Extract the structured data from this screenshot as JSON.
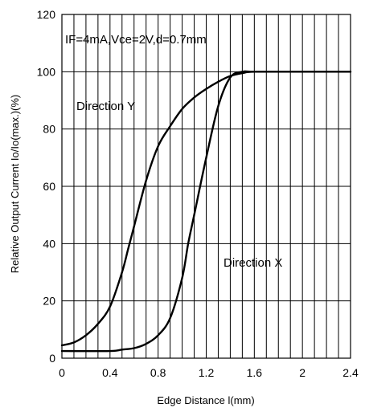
{
  "chart_data": {
    "type": "line",
    "xlabel": "Edge Distance l(mm)",
    "ylabel": "Relative Output Current Io/Io(max.)(%)",
    "xlim": [
      0,
      2.4
    ],
    "ylim": [
      0,
      120
    ],
    "x_ticks": [
      "0",
      "0.4",
      "0.8",
      "1.2",
      "1.6",
      "2",
      "2.4"
    ],
    "y_ticks": [
      "0",
      "20",
      "40",
      "60",
      "80",
      "100",
      "120"
    ],
    "grid": true,
    "legend": "none",
    "annotations": {
      "conditions": "IF=4mA,Vce=2V,d=0.7mm",
      "direction_y": "Direction Y",
      "direction_x": "Direction X"
    },
    "series": [
      {
        "name": "Direction Y",
        "x": [
          0,
          0.1,
          0.2,
          0.3,
          0.4,
          0.5,
          0.55,
          0.6,
          0.7,
          0.8,
          0.9,
          1.0,
          1.1,
          1.2,
          1.3,
          1.4,
          1.5,
          1.6,
          2.0,
          2.4
        ],
        "y": [
          4.5,
          5.5,
          8,
          12,
          18,
          30,
          38,
          46,
          62,
          74,
          81,
          87,
          91,
          94,
          96.5,
          98.5,
          99.5,
          100,
          100,
          100
        ]
      },
      {
        "name": "Direction X",
        "x": [
          0,
          0.4,
          0.5,
          0.6,
          0.7,
          0.8,
          0.9,
          1.0,
          1.05,
          1.1,
          1.2,
          1.3,
          1.4,
          1.5,
          1.6,
          2.0,
          2.4
        ],
        "y": [
          2.5,
          2.5,
          3,
          3.5,
          5,
          8,
          14,
          28,
          40,
          50,
          70,
          88,
          98,
          100,
          100,
          100,
          100
        ]
      }
    ]
  }
}
